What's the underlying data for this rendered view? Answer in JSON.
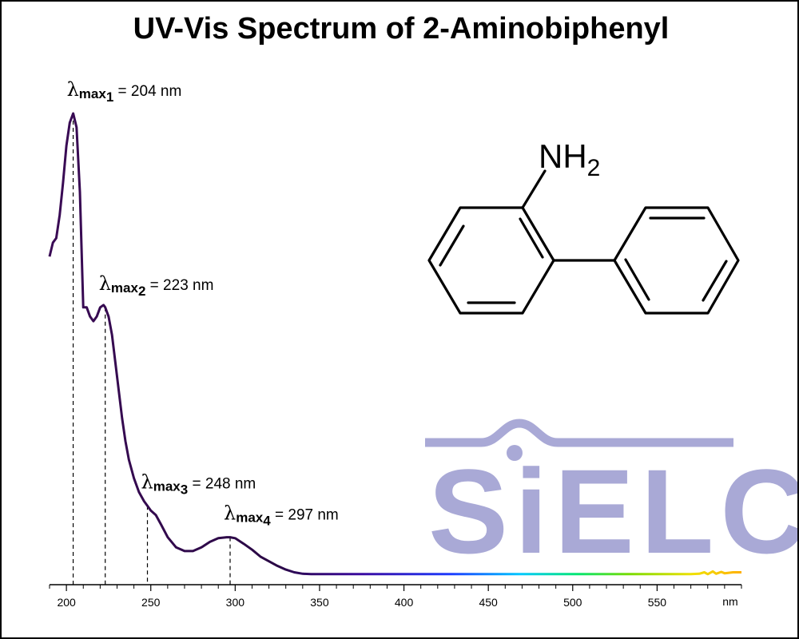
{
  "chart_data": {
    "type": "line",
    "title": "UV-Vis Spectrum of 2-Aminobiphenyl",
    "x_unit": "nm",
    "xlim": [
      190,
      600
    ],
    "ylim": [
      0,
      1
    ],
    "x_ticks": [
      200,
      250,
      300,
      350,
      400,
      450,
      500,
      550
    ],
    "x_tick_labels": [
      "200",
      "250",
      "300",
      "350",
      "400",
      "450",
      "500",
      "550"
    ],
    "grid": false,
    "series": [
      {
        "x": [
          190,
          192,
          194,
          196,
          198,
          200,
          202,
          204,
          206,
          208,
          210,
          212,
          214,
          216,
          218,
          220,
          222,
          223,
          225,
          227,
          229,
          231,
          233,
          235,
          237,
          240,
          243,
          246,
          248,
          250,
          253,
          256,
          260,
          265,
          270,
          275,
          280,
          285,
          290,
          295,
          297,
          300,
          305,
          310,
          315,
          320,
          325,
          330,
          335,
          340,
          345,
          350,
          360,
          370,
          380,
          390,
          400,
          420,
          450,
          480,
          500,
          520,
          550,
          560,
          570,
          575,
          578,
          580,
          583,
          585,
          588,
          590,
          595,
          600
        ],
        "y": [
          0.69,
          0.72,
          0.73,
          0.78,
          0.85,
          0.93,
          0.98,
          1.0,
          0.97,
          0.83,
          0.58,
          0.58,
          0.56,
          0.55,
          0.56,
          0.58,
          0.585,
          0.58,
          0.56,
          0.52,
          0.46,
          0.4,
          0.34,
          0.29,
          0.25,
          0.21,
          0.18,
          0.16,
          0.15,
          0.14,
          0.13,
          0.11,
          0.082,
          0.06,
          0.052,
          0.052,
          0.06,
          0.072,
          0.08,
          0.082,
          0.082,
          0.08,
          0.068,
          0.055,
          0.04,
          0.03,
          0.02,
          0.012,
          0.006,
          0.003,
          0.002,
          0.002,
          0.002,
          0.002,
          0.002,
          0.002,
          0.002,
          0.002,
          0.002,
          0.002,
          0.002,
          0.002,
          0.002,
          0.002,
          0.002,
          0.003,
          0.006,
          0.002,
          0.008,
          0.003,
          0.007,
          0.004,
          0.006,
          0.006
        ]
      }
    ],
    "annotations": [
      {
        "x": 204,
        "label_sub": "1",
        "value_text": " = 204 nm"
      },
      {
        "x": 223,
        "label_sub": "2",
        "value_text": " = 223 nm"
      },
      {
        "x": 248,
        "label_sub": "3",
        "value_text": " = 248 nm"
      },
      {
        "x": 297,
        "label_sub": "4",
        "value_text": " = 297 nm"
      }
    ],
    "lambda_symbol": "λ",
    "max_text": "max"
  },
  "molecule": {
    "group_label": "NH",
    "group_subscript": "2"
  },
  "logo": {
    "text": "SiELC",
    "color": "#a9a9d6"
  },
  "colors": {
    "curve_start": "#3a0a55",
    "spectrum": [
      "#2a0845",
      "#3b0ba0",
      "#1e3cff",
      "#00c8ff",
      "#00e676",
      "#7cdc00",
      "#f0e000",
      "#ffb000"
    ]
  }
}
